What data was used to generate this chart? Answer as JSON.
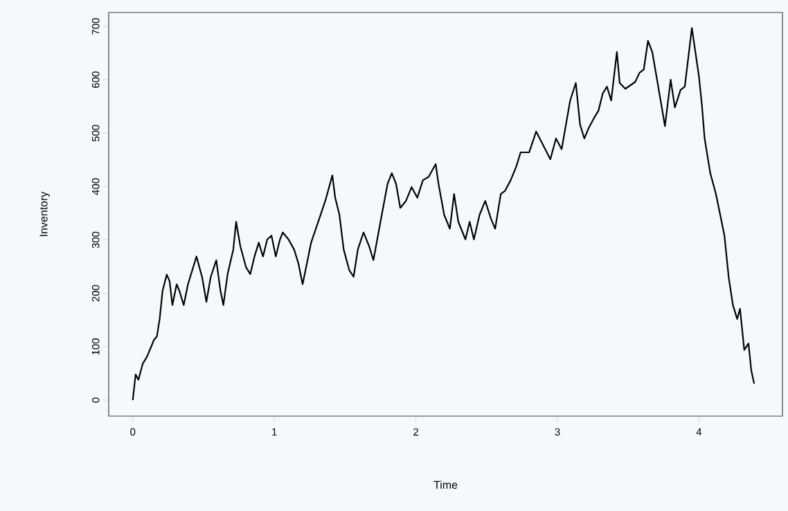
{
  "chart_data": {
    "type": "line",
    "xlabel": "Time",
    "ylabel": "Inventory",
    "x": [
      0.0,
      0.02,
      0.04,
      0.07,
      0.1,
      0.13,
      0.15,
      0.17,
      0.19,
      0.21,
      0.24,
      0.26,
      0.28,
      0.31,
      0.33,
      0.36,
      0.39,
      0.42,
      0.45,
      0.49,
      0.52,
      0.55,
      0.59,
      0.62,
      0.64,
      0.67,
      0.71,
      0.73,
      0.76,
      0.8,
      0.83,
      0.86,
      0.89,
      0.92,
      0.95,
      0.98,
      1.01,
      1.04,
      1.06,
      1.1,
      1.14,
      1.17,
      1.2,
      1.23,
      1.26,
      1.31,
      1.36,
      1.41,
      1.43,
      1.46,
      1.49,
      1.53,
      1.56,
      1.59,
      1.63,
      1.67,
      1.7,
      1.75,
      1.8,
      1.83,
      1.86,
      1.89,
      1.93,
      1.97,
      2.01,
      2.05,
      2.09,
      2.14,
      2.16,
      2.2,
      2.24,
      2.27,
      2.3,
      2.35,
      2.38,
      2.41,
      2.45,
      2.49,
      2.53,
      2.56,
      2.6,
      2.63,
      2.67,
      2.71,
      2.74,
      2.8,
      2.85,
      2.9,
      2.95,
      2.99,
      3.03,
      3.09,
      3.13,
      3.16,
      3.19,
      3.22,
      3.26,
      3.29,
      3.32,
      3.35,
      3.38,
      3.42,
      3.44,
      3.48,
      3.55,
      3.58,
      3.61,
      3.64,
      3.67,
      3.7,
      3.76,
      3.8,
      3.83,
      3.87,
      3.9,
      3.95,
      4.0,
      4.02,
      4.04,
      4.08,
      4.12,
      4.15,
      4.18,
      4.21,
      4.24,
      4.27,
      4.29,
      4.32,
      4.35,
      4.37,
      4.39
    ],
    "values": [
      0,
      48,
      38,
      68,
      81,
      100,
      113,
      119,
      152,
      204,
      235,
      223,
      178,
      217,
      204,
      178,
      217,
      243,
      269,
      230,
      184,
      230,
      262,
      204,
      178,
      236,
      282,
      334,
      288,
      249,
      236,
      269,
      295,
      269,
      301,
      308,
      269,
      301,
      314,
      301,
      282,
      256,
      217,
      256,
      295,
      334,
      373,
      421,
      379,
      347,
      282,
      243,
      231,
      282,
      314,
      288,
      262,
      334,
      405,
      425,
      405,
      360,
      373,
      399,
      379,
      412,
      418,
      442,
      405,
      347,
      321,
      386,
      334,
      301,
      334,
      301,
      347,
      373,
      340,
      321,
      386,
      392,
      412,
      438,
      464,
      464,
      503,
      477,
      451,
      490,
      470,
      561,
      594,
      516,
      490,
      509,
      529,
      542,
      574,
      587,
      561,
      652,
      594,
      583,
      596,
      613,
      619,
      673,
      652,
      606,
      513,
      600,
      548,
      581,
      587,
      697,
      606,
      555,
      490,
      425,
      386,
      347,
      308,
      230,
      178,
      152,
      171,
      94,
      106,
      55,
      31
    ],
    "color": "#000000",
    "xlim": [
      -0.17,
      4.59
    ],
    "ylim": [
      -30,
      726
    ],
    "xticks": [
      0,
      1,
      2,
      3,
      4
    ],
    "yticks": [
      0,
      100,
      200,
      300,
      400,
      500,
      600,
      700
    ],
    "grid": false,
    "marker": "none",
    "line_style": "solid"
  }
}
